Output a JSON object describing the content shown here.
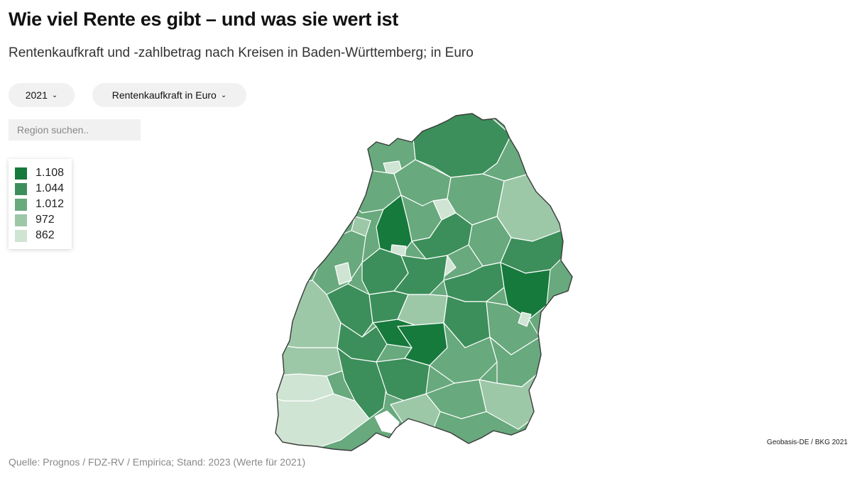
{
  "title": "Wie viel Rente es gibt – und was sie wert ist",
  "subtitle": "Rentenkaufkraft und -zahlbetrag nach Kreisen in Baden-Württemberg; in Euro",
  "controls": {
    "year_select": {
      "value": "2021"
    },
    "metric_select": {
      "value": "Rentenkaufkraft in Euro"
    },
    "search": {
      "placeholder": "Region suchen.."
    }
  },
  "legend": {
    "items": [
      {
        "label": "1.108",
        "color": "#167a3c"
      },
      {
        "label": "1.044",
        "color": "#3c8f5a"
      },
      {
        "label": "1.012",
        "color": "#68a97d"
      },
      {
        "label": "972",
        "color": "#9dc8a8"
      },
      {
        "label": "862",
        "color": "#cfe4d3"
      }
    ]
  },
  "map": {
    "region": "Baden-Württemberg",
    "border_color": "#3a3a3a",
    "district_line_color": "#ffffff"
  },
  "credit": "Geobasis-DE / BKG 2021",
  "source": "Quelle: Prognos / FDZ-RV / Empirica; Stand: 2023 (Werte für 2021)"
}
